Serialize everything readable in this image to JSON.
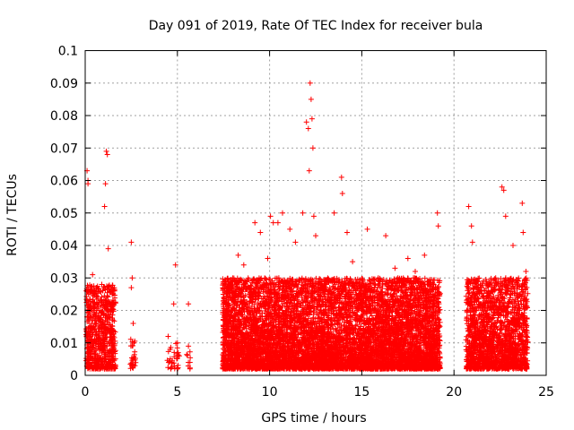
{
  "chart_data": {
    "type": "scatter",
    "title": "Day 091 of 2019, Rate Of TEC Index for receiver bula",
    "xlabel": "GPS time / hours",
    "ylabel": "ROTI / TECUs",
    "xlim": [
      0,
      25
    ],
    "ylim": [
      0,
      0.1
    ],
    "x_ticks": [
      0,
      5,
      10,
      15,
      20,
      25
    ],
    "x_tick_labels": [
      "0",
      "5",
      "10",
      "15",
      "20",
      "25"
    ],
    "y_ticks": [
      0,
      0.01,
      0.02,
      0.03,
      0.04,
      0.05,
      0.06,
      0.07,
      0.08,
      0.09,
      0.1
    ],
    "y_tick_labels": [
      "0",
      "0.01",
      "0.02",
      "0.03",
      "0.04",
      "0.05",
      "0.06",
      "0.07",
      "0.08",
      "0.09",
      "0.1"
    ],
    "grid": true,
    "marker": "+",
    "color": "#ff0000",
    "series": [
      {
        "points": [
          [
            0.1,
            0.063
          ],
          [
            0.15,
            0.059
          ],
          [
            0.15,
            0.06
          ],
          [
            0.2,
            0.022
          ],
          [
            0.25,
            0.018
          ],
          [
            0.3,
            0.012
          ],
          [
            0.35,
            0.008
          ],
          [
            0.4,
            0.031
          ],
          [
            0.5,
            0.026
          ],
          [
            0.6,
            0.016
          ],
          [
            0.7,
            0.009
          ],
          [
            0.8,
            0.005
          ],
          [
            0.9,
            0.028
          ],
          [
            1.0,
            0.022
          ],
          [
            1.05,
            0.052
          ],
          [
            1.1,
            0.059
          ],
          [
            1.15,
            0.069
          ],
          [
            1.2,
            0.068
          ],
          [
            1.25,
            0.039
          ],
          [
            1.3,
            0.018
          ],
          [
            1.35,
            0.01
          ],
          [
            1.4,
            0.004
          ],
          [
            2.5,
            0.041
          ],
          [
            2.55,
            0.03
          ],
          [
            2.5,
            0.027
          ],
          [
            2.6,
            0.016
          ],
          [
            2.65,
            0.01
          ],
          [
            2.6,
            0.005
          ],
          [
            2.7,
            0.003
          ],
          [
            4.5,
            0.012
          ],
          [
            4.6,
            0.008
          ],
          [
            4.7,
            0.004
          ],
          [
            4.8,
            0.022
          ],
          [
            4.9,
            0.034
          ],
          [
            5.0,
            0.01
          ],
          [
            5.1,
            0.006
          ],
          [
            5.6,
            0.022
          ],
          [
            5.6,
            0.009
          ],
          [
            5.6,
            0.004
          ],
          [
            8.3,
            0.037
          ],
          [
            8.6,
            0.034
          ],
          [
            9.2,
            0.047
          ],
          [
            9.5,
            0.044
          ],
          [
            9.9,
            0.036
          ],
          [
            10.05,
            0.049
          ],
          [
            10.2,
            0.047
          ],
          [
            10.45,
            0.047
          ],
          [
            10.7,
            0.05
          ],
          [
            11.1,
            0.045
          ],
          [
            11.4,
            0.041
          ],
          [
            11.8,
            0.05
          ],
          [
            12.0,
            0.078
          ],
          [
            12.1,
            0.076
          ],
          [
            12.2,
            0.09
          ],
          [
            12.25,
            0.085
          ],
          [
            12.3,
            0.079
          ],
          [
            12.15,
            0.063
          ],
          [
            12.35,
            0.07
          ],
          [
            12.4,
            0.049
          ],
          [
            12.5,
            0.043
          ],
          [
            13.5,
            0.05
          ],
          [
            13.9,
            0.061
          ],
          [
            13.95,
            0.056
          ],
          [
            14.2,
            0.044
          ],
          [
            14.5,
            0.035
          ],
          [
            15.3,
            0.045
          ],
          [
            16.3,
            0.043
          ],
          [
            16.8,
            0.033
          ],
          [
            17.5,
            0.036
          ],
          [
            17.9,
            0.032
          ],
          [
            18.4,
            0.037
          ],
          [
            19.1,
            0.05
          ],
          [
            19.15,
            0.046
          ],
          [
            20.8,
            0.052
          ],
          [
            20.95,
            0.046
          ],
          [
            21.0,
            0.041
          ],
          [
            22.6,
            0.058
          ],
          [
            22.7,
            0.057
          ],
          [
            22.8,
            0.049
          ],
          [
            23.2,
            0.04
          ],
          [
            23.7,
            0.053
          ],
          [
            23.75,
            0.044
          ],
          [
            23.9,
            0.032
          ]
        ]
      }
    ],
    "clusters": [
      {
        "x": [
          0.05,
          1.65
        ],
        "y_max": 0.028,
        "n": 700
      },
      {
        "x": [
          2.45,
          2.75
        ],
        "y_max": 0.012,
        "n": 25
      },
      {
        "x": [
          4.45,
          5.05
        ],
        "y_max": 0.01,
        "n": 30
      },
      {
        "x": [
          5.5,
          5.7
        ],
        "y_max": 0.008,
        "n": 8
      },
      {
        "x": [
          7.45,
          19.25
        ],
        "y_max": 0.03,
        "n": 7500
      },
      {
        "x": [
          20.65,
          24.0
        ],
        "y_max": 0.03,
        "n": 1800
      }
    ]
  }
}
